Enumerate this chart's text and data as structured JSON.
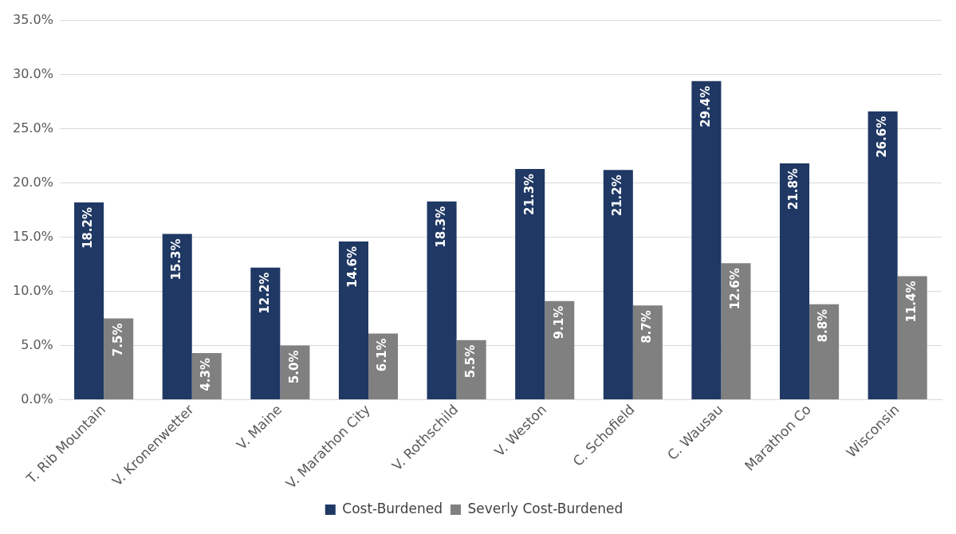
{
  "chart_data": {
    "type": "bar",
    "categories": [
      "T. Rib Mountain",
      "V. Kronenwetter",
      "V. Maine",
      "V. Marathon City",
      "V. Rothschild",
      "V. Weston",
      "C. Schofield",
      "C. Wausau",
      "Marathon Co",
      "Wisconsin"
    ],
    "series": [
      {
        "name": "Cost-Burdened",
        "color": "#1f3864",
        "values": [
          18.2,
          15.3,
          12.2,
          14.6,
          18.3,
          21.3,
          21.2,
          29.4,
          21.8,
          26.6
        ],
        "value_labels": [
          "18.2%",
          "15.3%",
          "12.2%",
          "14.6%",
          "18.3%",
          "21.3%",
          "21.2%",
          "29.4%",
          "21.8%",
          "26.6%"
        ]
      },
      {
        "name": "Severly Cost-Burdened",
        "color": "#808080",
        "values": [
          7.5,
          4.3,
          5.0,
          6.1,
          5.5,
          9.1,
          8.7,
          12.6,
          8.8,
          11.4
        ],
        "value_labels": [
          "7.5%",
          "4.3%",
          "5.0%",
          "6.1%",
          "5.5%",
          "9.1%",
          "8.7%",
          "12.6%",
          "8.8%",
          "11.4%"
        ]
      }
    ],
    "ylim": [
      0,
      35
    ],
    "yticks": [
      {
        "value": 0,
        "label": "0.0%"
      },
      {
        "value": 5,
        "label": "5.0%"
      },
      {
        "value": 10,
        "label": "10.0%"
      },
      {
        "value": 15,
        "label": "15.0%"
      },
      {
        "value": 20,
        "label": "20.0%"
      },
      {
        "value": 25,
        "label": "25.0%"
      },
      {
        "value": 30,
        "label": "30.0%"
      },
      {
        "value": 35,
        "label": "35.0%"
      }
    ],
    "grid": "y",
    "legend": "bottom"
  }
}
